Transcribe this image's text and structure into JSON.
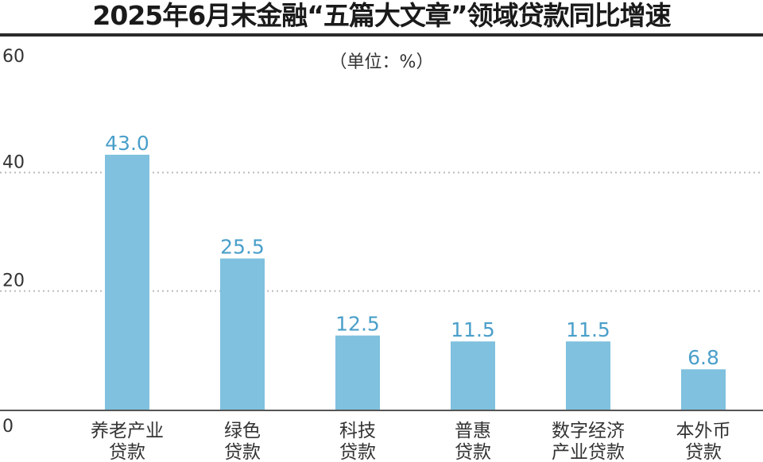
{
  "chart_data": {
    "type": "bar",
    "title": "2025年6月末金融“五篇大文章”领域贷款同比增速",
    "unit_label": "（单位：%）",
    "categories": [
      [
        "养老产业",
        "贷款"
      ],
      [
        "绿色",
        "贷款"
      ],
      [
        "科技",
        "贷款"
      ],
      [
        "普惠",
        "贷款"
      ],
      [
        "数字经济",
        "产业贷款"
      ],
      [
        "本外币",
        "贷款"
      ]
    ],
    "values": [
      43.0,
      25.5,
      12.5,
      11.5,
      11.5,
      6.8
    ],
    "value_labels": [
      "43.0",
      "25.5",
      "12.5",
      "11.5",
      "11.5",
      "6.8"
    ],
    "y_ticks": [
      0,
      20,
      40,
      60
    ],
    "ylim": [
      0,
      60
    ],
    "grid": true,
    "colors": {
      "bar": "#7fc1de",
      "value_label": "#4a9fca",
      "grid": "#bbbbbb",
      "axis_text": "#333333"
    }
  }
}
